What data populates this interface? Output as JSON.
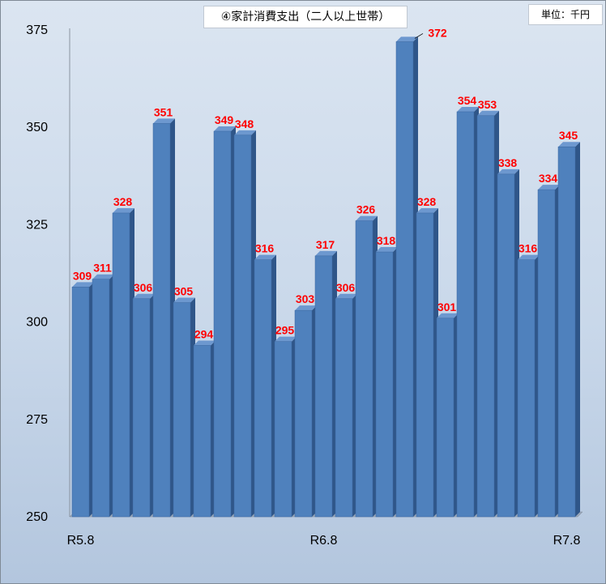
{
  "title": "④家計消費支出（二人以上世帯）",
  "unit": "単位：千円",
  "colors": {
    "bar_front": "#4f81bd",
    "bar_side": "#2f5689",
    "bar_top": "#6d98cf",
    "label": "#ff0000"
  },
  "chart_data": {
    "type": "bar",
    "title": "④家計消費支出（二人以上世帯）",
    "unit": "単位：千円",
    "categories": [
      "R5.8",
      "",
      "",
      "",
      "",
      "",
      "",
      "",
      "",
      "",
      "",
      "",
      "R6.8",
      "",
      "",
      "",
      "",
      "",
      "",
      "",
      "",
      "",
      "",
      "",
      "R7.8"
    ],
    "values": [
      309,
      311,
      328,
      306,
      351,
      305,
      294,
      349,
      348,
      316,
      295,
      303,
      317,
      306,
      326,
      318,
      372,
      328,
      301,
      354,
      353,
      338,
      316,
      334,
      345
    ],
    "ylim": [
      250,
      375
    ],
    "yticks": [
      250,
      275,
      300,
      325,
      350,
      375
    ],
    "style": "3d-bar",
    "data_labels": true
  }
}
